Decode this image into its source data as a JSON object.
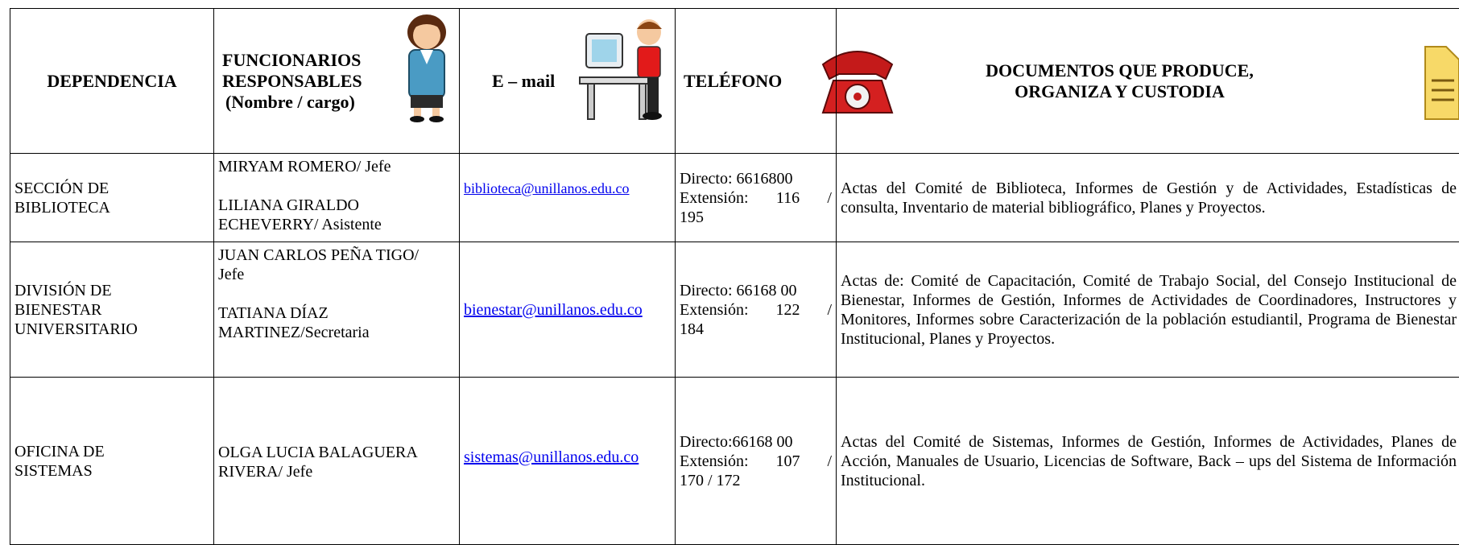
{
  "table": {
    "header": {
      "dependencia": "DEPENDENCIA",
      "funcionarios": [
        "FUNCIONARIOS",
        "RESPONSABLES",
        "(Nombre / cargo)"
      ],
      "email": "E – mail",
      "telefono": "TELÉFONO",
      "documentos": [
        "DOCUMENTOS QUE PRODUCE,",
        "ORGANIZA Y CUSTODIA"
      ]
    },
    "rows": [
      {
        "dependencia": [
          "SECCIÓN DE",
          "BIBLIOTECA"
        ],
        "funcionarios": [
          [
            "MIRYAM ROMERO/ Jefe"
          ],
          [
            "LILIANA GIRALDO",
            "ECHEVERRY/ Asistente"
          ]
        ],
        "email": "biblioteca@unillanos.edu.co",
        "telefono": [
          "Directo: 6616800",
          "Extensión: 116 /",
          "195"
        ],
        "documentos": "Actas del Comité de Biblioteca, Informes de Gestión y de Actividades, Estadísticas de consulta, Inventario de material bibliográfico, Planes y Proyectos."
      },
      {
        "dependencia": [
          "DIVISIÓN DE",
          "BIENESTAR",
          "UNIVERSITARIO"
        ],
        "funcionarios": [
          [
            "JUAN CARLOS PEÑA TIGO/",
            "Jefe"
          ],
          [
            "TATIANA DÍAZ",
            "MARTINEZ/Secretaria"
          ]
        ],
        "email": "bienestar@unillanos.edu.co",
        "telefono": [
          "Directo: 66168 00",
          "Extensión: 122 /",
          "184"
        ],
        "documentos": "Actas de: Comité de Capacitación, Comité de Trabajo Social, del Consejo Institucional de Bienestar, Informes de Gestión, Informes de Actividades de Coordinadores, Instructores y Monitores, Informes sobre Caracterización de la población estudiantil, Programa de Bienestar Institucional, Planes y Proyectos."
      },
      {
        "dependencia": [
          "OFICINA DE",
          "SISTEMAS"
        ],
        "funcionarios": [
          [
            "OLGA LUCIA BALAGUERA",
            "RIVERA/ Jefe"
          ]
        ],
        "email": "sistemas@unillanos.edu.co",
        "telefono": [
          "Directo:66168 00",
          "Extensión: 107 /",
          "170 / 172"
        ],
        "documentos": "Actas del Comité de Sistemas, Informes de Gestión, Informes de Actividades, Planes de Acción, Manuales de Usuario, Licencias de Software, Back – ups del Sistema de Información Institucional."
      }
    ]
  }
}
